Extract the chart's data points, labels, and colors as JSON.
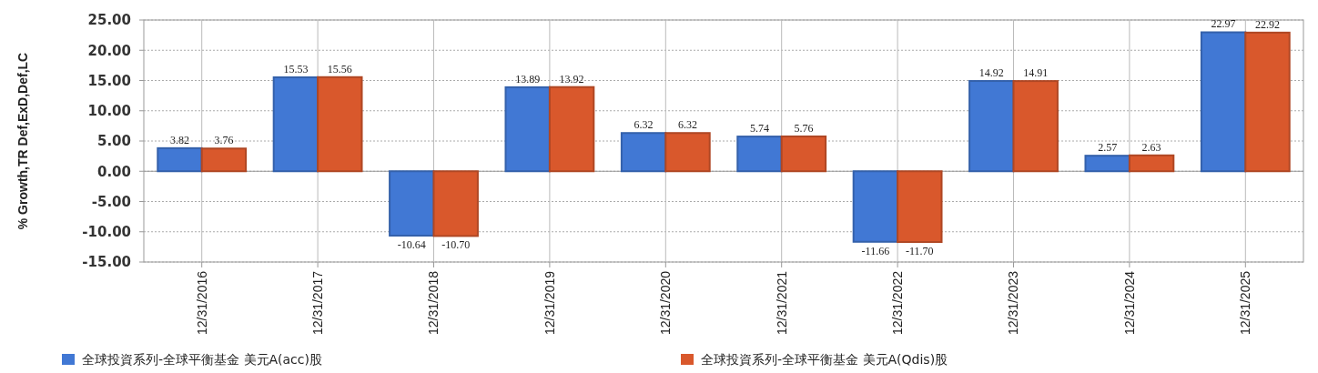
{
  "chart_data": {
    "type": "bar",
    "ylabel": "% Growth,TR Def,ExD,Def,LC",
    "categories": [
      "12/31/2016",
      "12/31/2017",
      "12/31/2018",
      "12/31/2019",
      "12/31/2020",
      "12/31/2021",
      "12/31/2022",
      "12/31/2023",
      "12/31/2024",
      "12/31/2025"
    ],
    "series": [
      {
        "name": "全球投資系列-全球平衡基金 美元A(acc)股",
        "color": "#4178d4",
        "values": [
          3.82,
          15.53,
          -10.64,
          13.89,
          6.32,
          5.74,
          -11.66,
          14.92,
          2.57,
          22.97
        ],
        "value_labels": [
          "3.82",
          "15.53",
          "-10.64",
          "13.89",
          "6.32",
          "5.74",
          "-11.66",
          "14.92",
          "2.57",
          "22.97"
        ]
      },
      {
        "name": "全球投資系列-全球平衡基金 美元A(Qdis)股",
        "color": "#d9582c",
        "values": [
          3.76,
          15.56,
          -10.7,
          13.92,
          6.32,
          5.76,
          -11.7,
          14.91,
          2.63,
          22.92
        ],
        "value_labels": [
          "3.76",
          "15.56",
          "-10.70",
          "13.92",
          "6.32",
          "5.76",
          "-11.70",
          "14.91",
          "2.63",
          "22.92"
        ]
      }
    ],
    "ylim": [
      -15,
      25
    ],
    "yticks": [
      {
        "value": -15,
        "label": "-15.00"
      },
      {
        "value": -10,
        "label": "-10.00"
      },
      {
        "value": -5,
        "label": "-5.00"
      },
      {
        "value": 0,
        "label": "0.00"
      },
      {
        "value": 5,
        "label": "5.00"
      },
      {
        "value": 10,
        "label": "10.00"
      },
      {
        "value": 15,
        "label": "15.00"
      },
      {
        "value": 20,
        "label": "20.00"
      },
      {
        "value": 25,
        "label": "25.00"
      }
    ],
    "grid": true,
    "legend": "bottom"
  }
}
